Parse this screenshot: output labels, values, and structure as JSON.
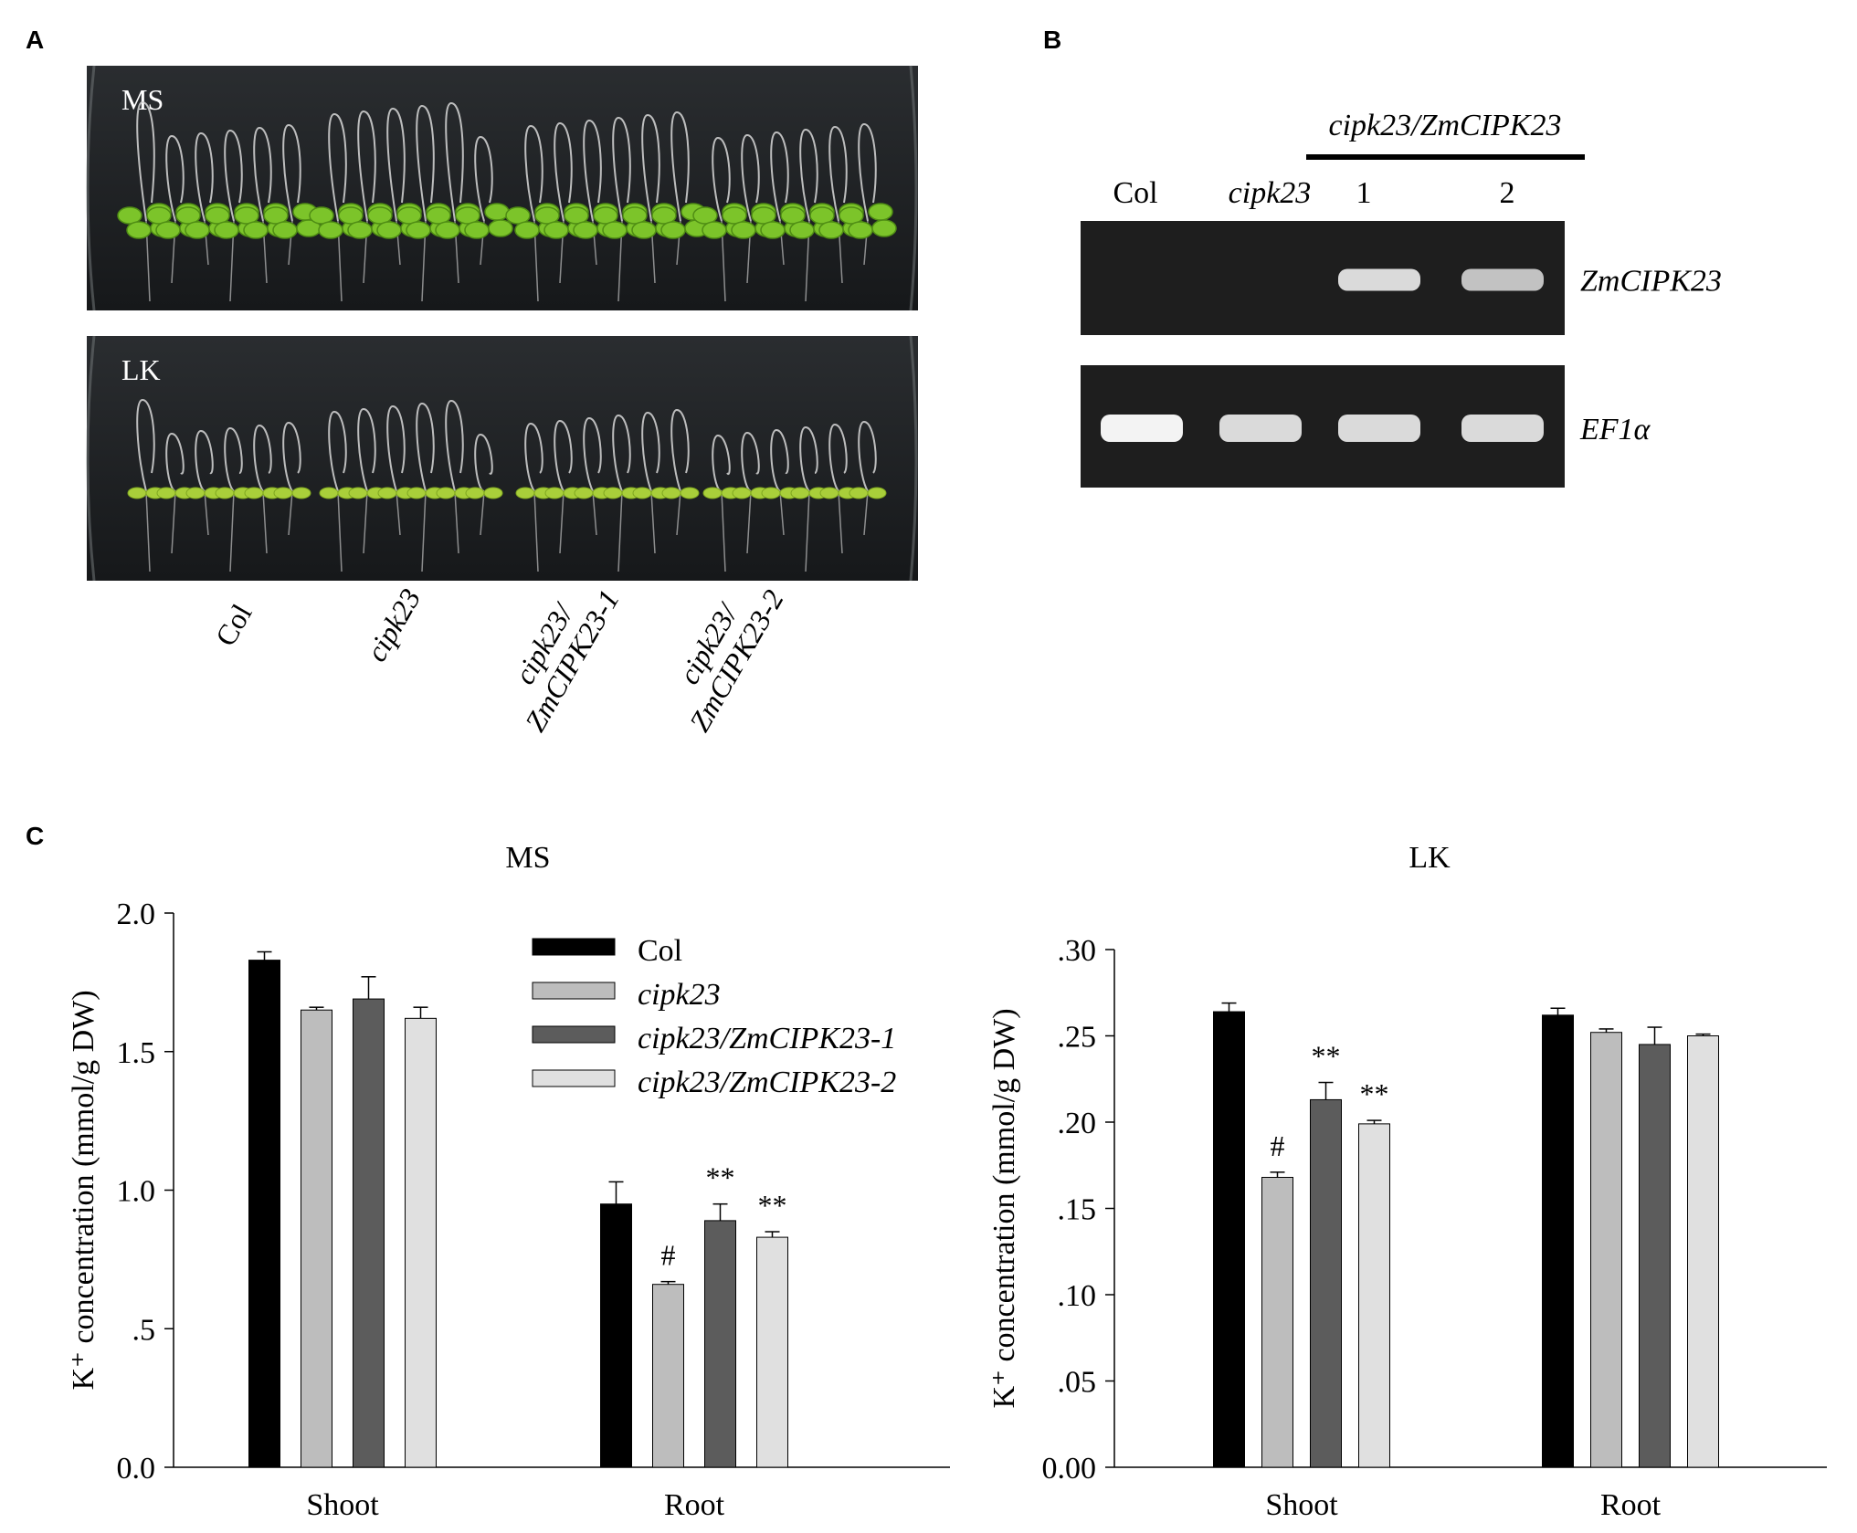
{
  "panels": {
    "A": {
      "letter": "A",
      "plates": [
        {
          "label": "MS",
          "seedling_tone": "green"
        },
        {
          "label": "LK",
          "seedling_tone": "yellow-green"
        }
      ],
      "genotype_labels": [
        {
          "lines": [
            "Col"
          ],
          "italic": [
            false
          ]
        },
        {
          "lines": [
            "cipk23"
          ],
          "italic": [
            true
          ]
        },
        {
          "lines": [
            "cipk23/",
            "ZmCIPK23-1"
          ],
          "italic": [
            true,
            true
          ]
        },
        {
          "lines": [
            "cipk23/",
            "ZmCIPK23-2"
          ],
          "italic": [
            true,
            true
          ]
        }
      ]
    },
    "B": {
      "letter": "B",
      "group_label": "cipk23/ZmCIPK23",
      "lanes": [
        "Col",
        "cipk23",
        "1",
        "2"
      ],
      "gels": [
        {
          "gene": "ZmCIPK23",
          "band_intensity": [
            0,
            0,
            0.85,
            0.7
          ]
        },
        {
          "gene": "EF1α",
          "band_intensity": [
            1,
            0.85,
            0.85,
            0.85
          ]
        }
      ]
    },
    "C": {
      "letter": "C"
    }
  },
  "colors": {
    "Col": "#000000",
    "cipk23": "#bdbdbd",
    "cipk23/ZmCIPK23-1": "#5c5c5c",
    "cipk23/ZmCIPK23-2": "#e0e0e0",
    "gel_background": "#1e1e1e",
    "plate_background": "#16181a"
  },
  "chart_data": [
    {
      "type": "bar",
      "title": "MS",
      "ylabel": "K⁺ concentration (mmol/g DW)",
      "categories": [
        "Shoot",
        "Root"
      ],
      "ylim": [
        0,
        2.0
      ],
      "yticks": [
        0.0,
        0.5,
        1.0,
        1.5,
        2.0
      ],
      "ytick_labels": [
        "0.0",
        ".5",
        "1.0",
        "1.5",
        "2.0"
      ],
      "series": [
        {
          "name": "Col",
          "values": [
            1.83,
            0.95
          ],
          "errors": [
            0.03,
            0.08
          ],
          "marks": [
            "",
            ""
          ]
        },
        {
          "name": "cipk23",
          "values": [
            1.65,
            0.66
          ],
          "errors": [
            0.01,
            0.01
          ],
          "marks": [
            "",
            "#"
          ]
        },
        {
          "name": "cipk23/ZmCIPK23-1",
          "values": [
            1.69,
            0.89
          ],
          "errors": [
            0.08,
            0.06
          ],
          "marks": [
            "",
            "**"
          ]
        },
        {
          "name": "cipk23/ZmCIPK23-2",
          "values": [
            1.62,
            0.83
          ],
          "errors": [
            0.04,
            0.02
          ],
          "marks": [
            "",
            "**"
          ]
        }
      ],
      "legend": "top-right"
    },
    {
      "type": "bar",
      "title": "LK",
      "ylabel": "K⁺ concentration (mmol/g DW)",
      "categories": [
        "Shoot",
        "Root"
      ],
      "ylim": [
        0,
        0.3
      ],
      "yticks": [
        0.0,
        0.05,
        0.1,
        0.15,
        0.2,
        0.25,
        0.3
      ],
      "ytick_labels": [
        "0.00",
        ".05",
        ".10",
        ".15",
        ".20",
        ".25",
        ".30"
      ],
      "series": [
        {
          "name": "Col",
          "values": [
            0.264,
            0.262
          ],
          "errors": [
            0.005,
            0.004
          ],
          "marks": [
            "",
            ""
          ]
        },
        {
          "name": "cipk23",
          "values": [
            0.168,
            0.252
          ],
          "errors": [
            0.003,
            0.002
          ],
          "marks": [
            "#",
            ""
          ]
        },
        {
          "name": "cipk23/ZmCIPK23-1",
          "values": [
            0.213,
            0.245
          ],
          "errors": [
            0.01,
            0.01
          ],
          "marks": [
            "**",
            ""
          ]
        },
        {
          "name": "cipk23/ZmCIPK23-2",
          "values": [
            0.199,
            0.25
          ],
          "errors": [
            0.002,
            0.001
          ],
          "marks": [
            "**",
            ""
          ]
        }
      ]
    }
  ]
}
